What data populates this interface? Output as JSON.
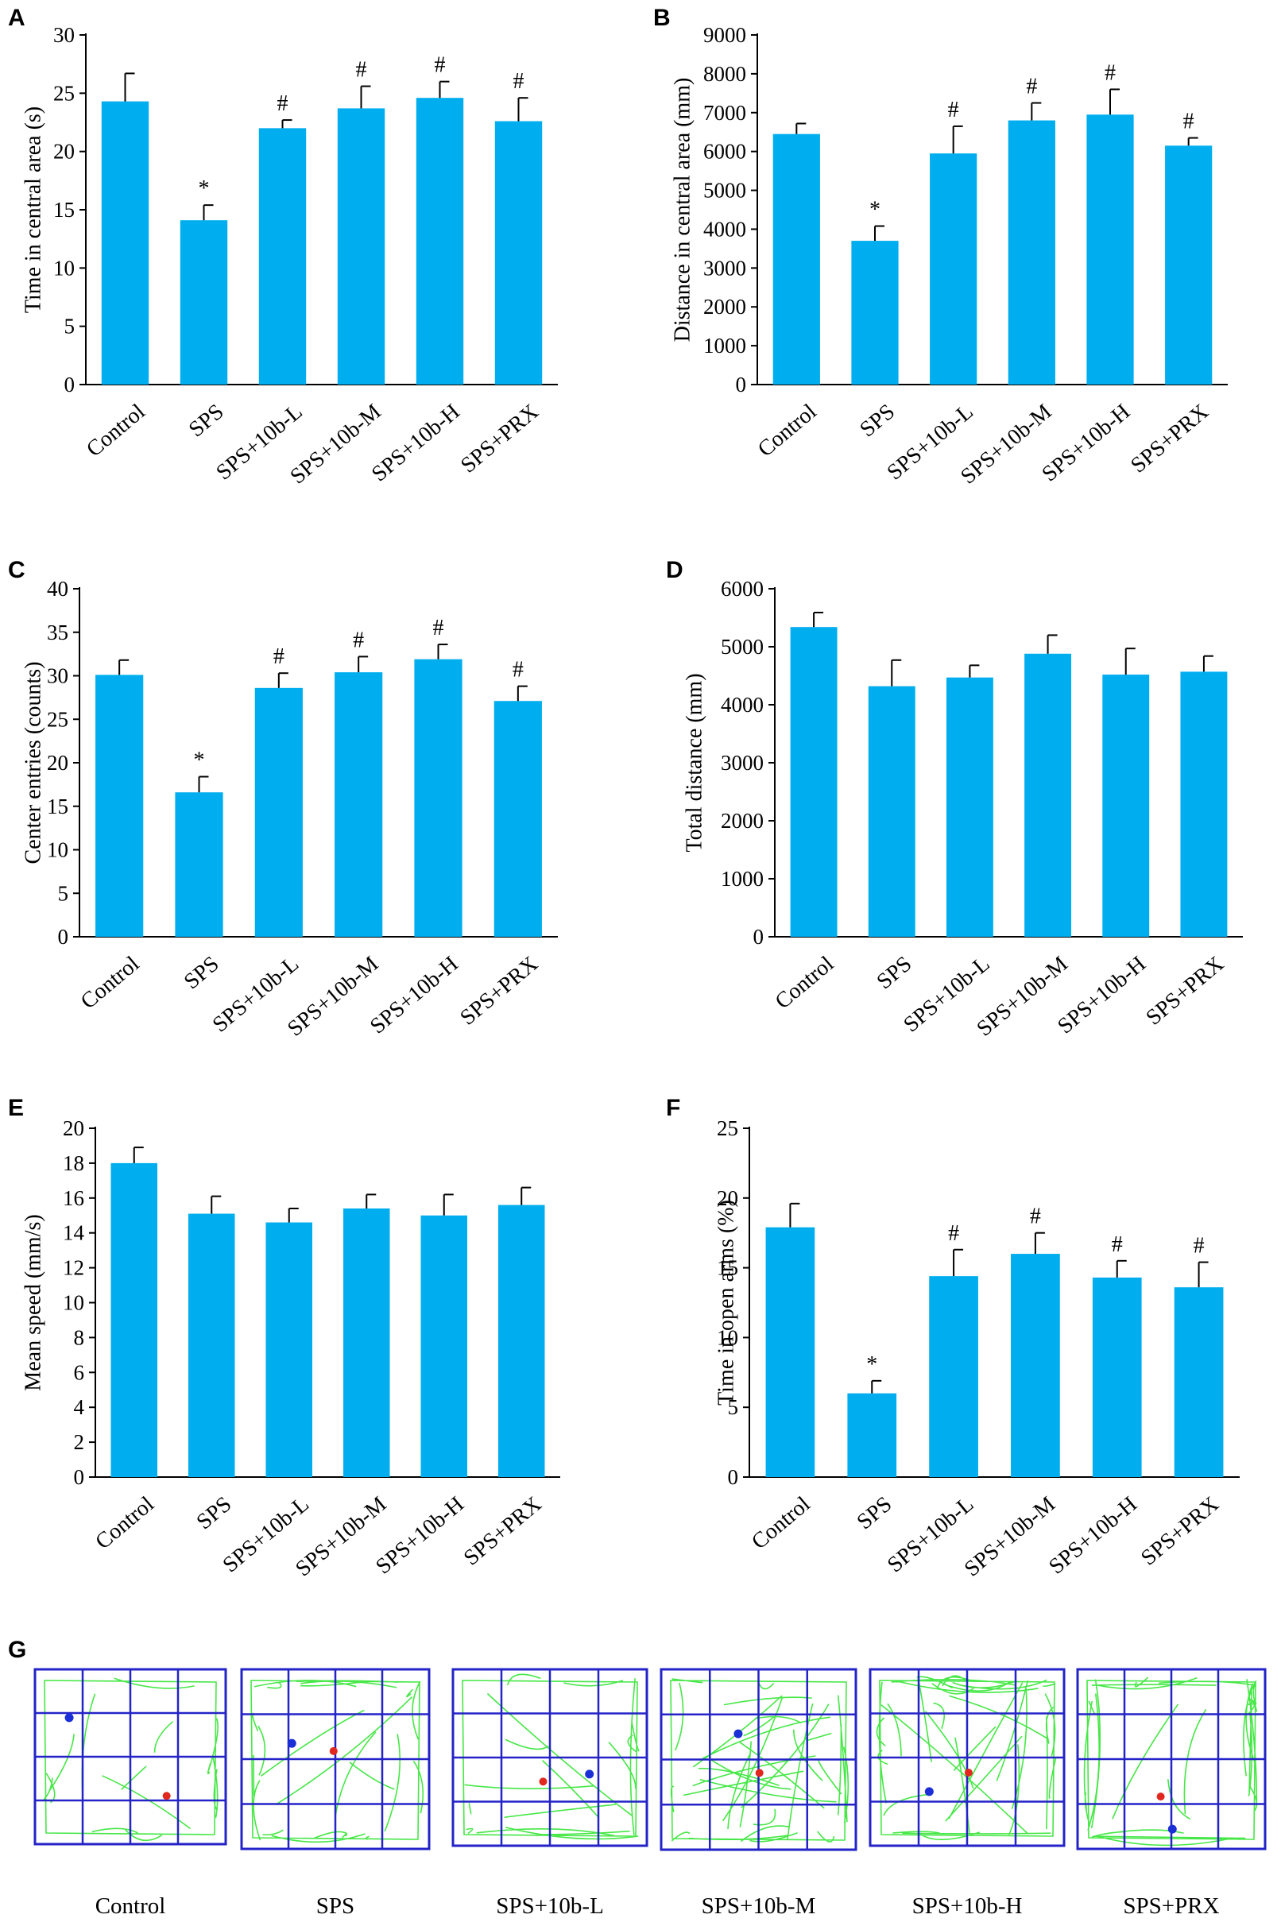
{
  "colors": {
    "bar": "#00AEEF",
    "axis": "#000000",
    "grid_frame": "#2323c8",
    "track": "#3ce63c",
    "dot_blue": "#1a2fd6",
    "dot_red": "#e0281e"
  },
  "chart_data": [
    {
      "id": "A",
      "type": "bar",
      "letter": "A",
      "categories": [
        "Control",
        "SPS",
        "SPS+10b-L",
        "SPS+10b-M",
        "SPS+10b-H",
        "SPS+PRX"
      ],
      "values": [
        24.3,
        14.1,
        22.0,
        23.7,
        24.6,
        22.6
      ],
      "errors": [
        2.4,
        1.3,
        0.7,
        1.9,
        1.4,
        2.0
      ],
      "significance": [
        "",
        "*",
        "#",
        "#",
        "#",
        "#"
      ],
      "ylabel": "Time in central area (s)",
      "ylim": [
        0,
        30
      ],
      "yticks": [
        0,
        5,
        10,
        15,
        20,
        25,
        30
      ]
    },
    {
      "id": "B",
      "type": "bar",
      "letter": "B",
      "categories": [
        "Control",
        "SPS",
        "SPS+10b-L",
        "SPS+10b-M",
        "SPS+10b-H",
        "SPS+PRX"
      ],
      "values": [
        6450,
        3700,
        5950,
        6800,
        6950,
        6150
      ],
      "errors": [
        270,
        380,
        700,
        450,
        650,
        200
      ],
      "significance": [
        "",
        "*",
        "#",
        "#",
        "#",
        "#"
      ],
      "ylabel": "Distance in central area (mm)",
      "ylim": [
        0,
        9000
      ],
      "yticks": [
        0,
        1000,
        2000,
        3000,
        4000,
        5000,
        6000,
        7000,
        8000,
        9000
      ]
    },
    {
      "id": "C",
      "type": "bar",
      "letter": "C",
      "categories": [
        "Control",
        "SPS",
        "SPS+10b-L",
        "SPS+10b-M",
        "SPS+10b-H",
        "SPS+PRX"
      ],
      "values": [
        30.1,
        16.6,
        28.6,
        30.4,
        31.9,
        27.1
      ],
      "errors": [
        1.7,
        1.8,
        1.7,
        1.8,
        1.7,
        1.7
      ],
      "significance": [
        "",
        "*",
        "#",
        "#",
        "#",
        "#"
      ],
      "ylabel": "Center entries (counts)",
      "ylim": [
        0,
        40
      ],
      "yticks": [
        0,
        5,
        10,
        15,
        20,
        25,
        30,
        35,
        40
      ]
    },
    {
      "id": "D",
      "type": "bar",
      "letter": "D",
      "categories": [
        "Control",
        "SPS",
        "SPS+10b-L",
        "SPS+10b-M",
        "SPS+10b-H",
        "SPS+PRX"
      ],
      "values": [
        5340,
        4320,
        4470,
        4880,
        4520,
        4570
      ],
      "errors": [
        250,
        450,
        210,
        320,
        450,
        270
      ],
      "significance": [
        "",
        "",
        "",
        "",
        "",
        ""
      ],
      "ylabel": "Total distance (mm)",
      "ylim": [
        0,
        6000
      ],
      "yticks": [
        0,
        1000,
        2000,
        3000,
        4000,
        5000,
        6000
      ]
    },
    {
      "id": "E",
      "type": "bar",
      "letter": "E",
      "categories": [
        "Control",
        "SPS",
        "SPS+10b-L",
        "SPS+10b-M",
        "SPS+10b-H",
        "SPS+PRX"
      ],
      "values": [
        18.0,
        15.1,
        14.6,
        15.4,
        15.0,
        15.6
      ],
      "errors": [
        0.9,
        1.0,
        0.8,
        0.8,
        1.2,
        1.0
      ],
      "significance": [
        "",
        "",
        "",
        "",
        "",
        ""
      ],
      "ylabel": "Mean speed (mm/s)",
      "ylim": [
        0,
        20
      ],
      "yticks": [
        0,
        2,
        4,
        6,
        8,
        10,
        12,
        14,
        16,
        18,
        20
      ]
    },
    {
      "id": "F",
      "type": "bar",
      "letter": "F",
      "categories": [
        "Control",
        "SPS",
        "SPS+10b-L",
        "SPS+10b-M",
        "SPS+10b-H",
        "SPS+PRX"
      ],
      "values": [
        17.9,
        6.0,
        14.4,
        16.0,
        14.3,
        13.6
      ],
      "errors": [
        1.7,
        0.9,
        1.9,
        1.5,
        1.2,
        1.8
      ],
      "significance": [
        "",
        "*",
        "#",
        "#",
        "#",
        "#"
      ],
      "ylabel": "Time in open arms (%)",
      "ylim": [
        0,
        25
      ],
      "yticks": [
        0,
        5,
        10,
        15,
        20,
        25
      ]
    }
  ],
  "panel_g": {
    "letter": "G",
    "tracks": [
      {
        "label": "Control",
        "seed": 11,
        "density": 14,
        "edge": 0.55
      },
      {
        "label": "SPS",
        "seed": 23,
        "density": 22,
        "edge": 0.75
      },
      {
        "label": "SPS+10b-L",
        "seed": 37,
        "density": 16,
        "edge": 0.55
      },
      {
        "label": "SPS+10b-M",
        "seed": 41,
        "density": 32,
        "edge": 0.5
      },
      {
        "label": "SPS+10b-H",
        "seed": 53,
        "density": 34,
        "edge": 0.5
      },
      {
        "label": "SPS+PRX",
        "seed": 67,
        "density": 26,
        "edge": 0.8
      }
    ]
  }
}
